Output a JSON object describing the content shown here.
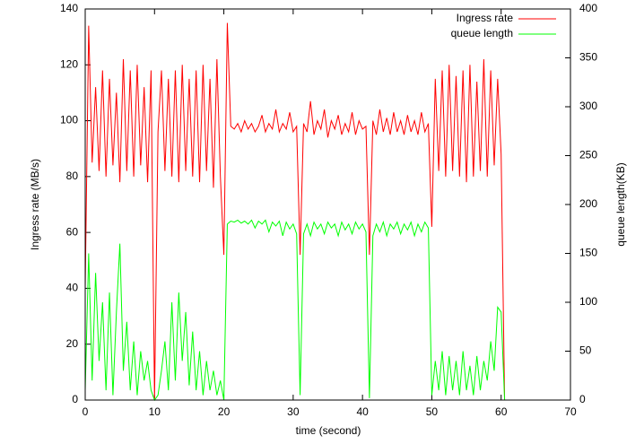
{
  "chart_data": {
    "type": "line",
    "xlabel": "time (second)",
    "ylabel": "Ingress rate (MB/s)",
    "y2label": "queue length(KB)",
    "xlim": [
      0,
      70
    ],
    "xticks": [
      0,
      10,
      20,
      30,
      40,
      50,
      60,
      70
    ],
    "ylim": [
      0,
      140
    ],
    "yticks": [
      0,
      20,
      40,
      60,
      80,
      100,
      120,
      140
    ],
    "y2lim": [
      0,
      400
    ],
    "y2ticks": [
      0,
      50,
      100,
      150,
      200,
      250,
      300,
      350,
      400
    ],
    "legend": "top-right",
    "x": [
      0,
      0.5,
      1,
      1.5,
      2,
      2.5,
      3,
      3.5,
      4,
      4.5,
      5,
      5.5,
      6,
      6.5,
      7,
      7.5,
      8,
      8.5,
      9,
      9.5,
      10,
      10.5,
      11,
      11.5,
      12,
      12.5,
      13,
      13.5,
      14,
      14.5,
      15,
      15.5,
      16,
      16.5,
      17,
      17.5,
      18,
      18.5,
      19,
      19.5,
      20,
      20.5,
      21,
      21.5,
      22,
      22.5,
      23,
      23.5,
      24,
      24.5,
      25,
      25.5,
      26,
      26.5,
      27,
      27.5,
      28,
      28.5,
      29,
      29.5,
      30,
      30.5,
      31,
      31.5,
      32,
      32.5,
      33,
      33.5,
      34,
      34.5,
      35,
      35.5,
      36,
      36.5,
      37,
      37.5,
      38,
      38.5,
      39,
      39.5,
      40,
      40.5,
      41,
      41.5,
      42,
      42.5,
      43,
      43.5,
      44,
      44.5,
      45,
      45.5,
      46,
      46.5,
      47,
      47.5,
      48,
      48.5,
      49,
      49.5,
      50,
      50.5,
      51,
      51.5,
      52,
      52.5,
      53,
      53.5,
      54,
      54.5,
      55,
      55.5,
      56,
      56.5,
      57,
      57.5,
      58,
      58.5,
      59,
      59.5,
      60,
      60.5
    ],
    "series": [
      {
        "name": "Ingress rate",
        "color": "#ff0000",
        "axis": "y",
        "values": [
          40,
          134,
          85,
          112,
          82,
          118,
          80,
          115,
          84,
          110,
          78,
          122,
          82,
          118,
          80,
          120,
          84,
          112,
          78,
          118,
          0,
          96,
          118,
          82,
          115,
          80,
          118,
          78,
          120,
          82,
          115,
          80,
          118,
          78,
          120,
          82,
          115,
          76,
          122,
          80,
          52,
          135,
          98,
          97,
          99,
          96,
          100,
          97,
          99,
          96,
          98,
          102,
          96,
          99,
          97,
          104,
          96,
          99,
          97,
          103,
          96,
          98,
          52,
          99,
          96,
          107,
          95,
          100,
          97,
          104,
          94,
          100,
          97,
          102,
          95,
          99,
          96,
          103,
          95,
          100,
          97,
          98,
          52,
          100,
          95,
          104,
          96,
          101,
          95,
          103,
          96,
          100,
          95,
          102,
          96,
          100,
          95,
          103,
          96,
          99,
          62,
          115,
          82,
          118,
          80,
          120,
          82,
          116,
          80,
          118,
          78,
          120,
          80,
          114,
          82,
          122,
          80,
          118,
          84,
          115,
          88,
          0
        ]
      },
      {
        "name": "queue length",
        "color": "#00ff00",
        "axis": "y2",
        "values": [
          10,
          150,
          20,
          130,
          40,
          100,
          10,
          110,
          5,
          90,
          160,
          30,
          80,
          10,
          60,
          5,
          50,
          20,
          40,
          10,
          0,
          5,
          30,
          60,
          10,
          100,
          20,
          110,
          40,
          90,
          15,
          70,
          10,
          50,
          5,
          40,
          10,
          30,
          5,
          20,
          0,
          180,
          183,
          182,
          184,
          181,
          183,
          180,
          184,
          176,
          183,
          180,
          184,
          172,
          182,
          178,
          183,
          168,
          182,
          175,
          180,
          170,
          5,
          170,
          180,
          168,
          182,
          175,
          180,
          170,
          182,
          176,
          180,
          168,
          182,
          174,
          180,
          170,
          182,
          175,
          180,
          172,
          2,
          168,
          180,
          172,
          182,
          168,
          180,
          175,
          182,
          170,
          180,
          174,
          182,
          168,
          180,
          172,
          182,
          176,
          5,
          40,
          10,
          50,
          5,
          45,
          10,
          40,
          5,
          50,
          10,
          35,
          5,
          45,
          10,
          40,
          20,
          60,
          30,
          95,
          90,
          0
        ]
      }
    ]
  }
}
